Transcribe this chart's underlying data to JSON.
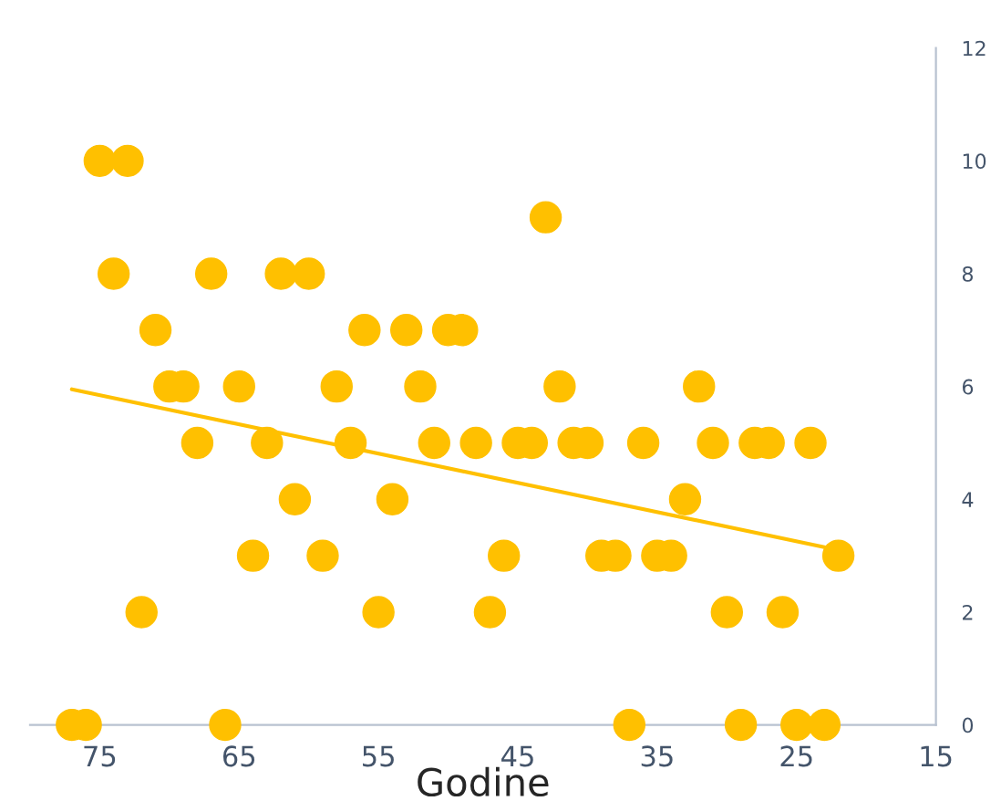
{
  "chart_data": {
    "type": "scatter",
    "xlabel": "Godine",
    "xlim": [
      80,
      15
    ],
    "xticks": [
      75,
      65,
      55,
      45,
      35,
      25,
      15
    ],
    "ylim": [
      0,
      12
    ],
    "yticks": [
      0,
      2,
      4,
      6,
      8,
      10,
      12
    ],
    "grid": false,
    "series": [
      {
        "marker": "circle",
        "color": "#ffc000",
        "x": [
          77,
          76,
          66,
          37,
          29,
          25,
          23,
          75,
          73,
          74,
          67,
          62,
          60,
          71,
          56,
          53,
          50,
          49,
          70,
          69,
          65,
          58,
          52,
          42,
          32,
          68,
          63,
          57,
          51,
          48,
          45,
          44,
          41,
          40,
          36,
          31,
          28,
          27,
          24,
          61,
          54,
          33,
          64,
          59,
          46,
          39,
          38,
          35,
          34,
          22,
          72,
          55,
          47,
          30,
          26,
          43
        ],
        "values": [
          0,
          0,
          0,
          0,
          0,
          0,
          0,
          10,
          10,
          8,
          8,
          8,
          8,
          7,
          7,
          7,
          7,
          7,
          6,
          6,
          6,
          6,
          6,
          6,
          6,
          5,
          5,
          5,
          5,
          5,
          5,
          5,
          5,
          5,
          5,
          5,
          5,
          5,
          5,
          4,
          4,
          4,
          3,
          3,
          3,
          3,
          3,
          3,
          3,
          3,
          2,
          2,
          2,
          2,
          2,
          9
        ]
      },
      {
        "type": "line",
        "color": "#ffc000",
        "x": [
          77,
          22
        ],
        "values": [
          5.95,
          3.1
        ]
      }
    ]
  }
}
